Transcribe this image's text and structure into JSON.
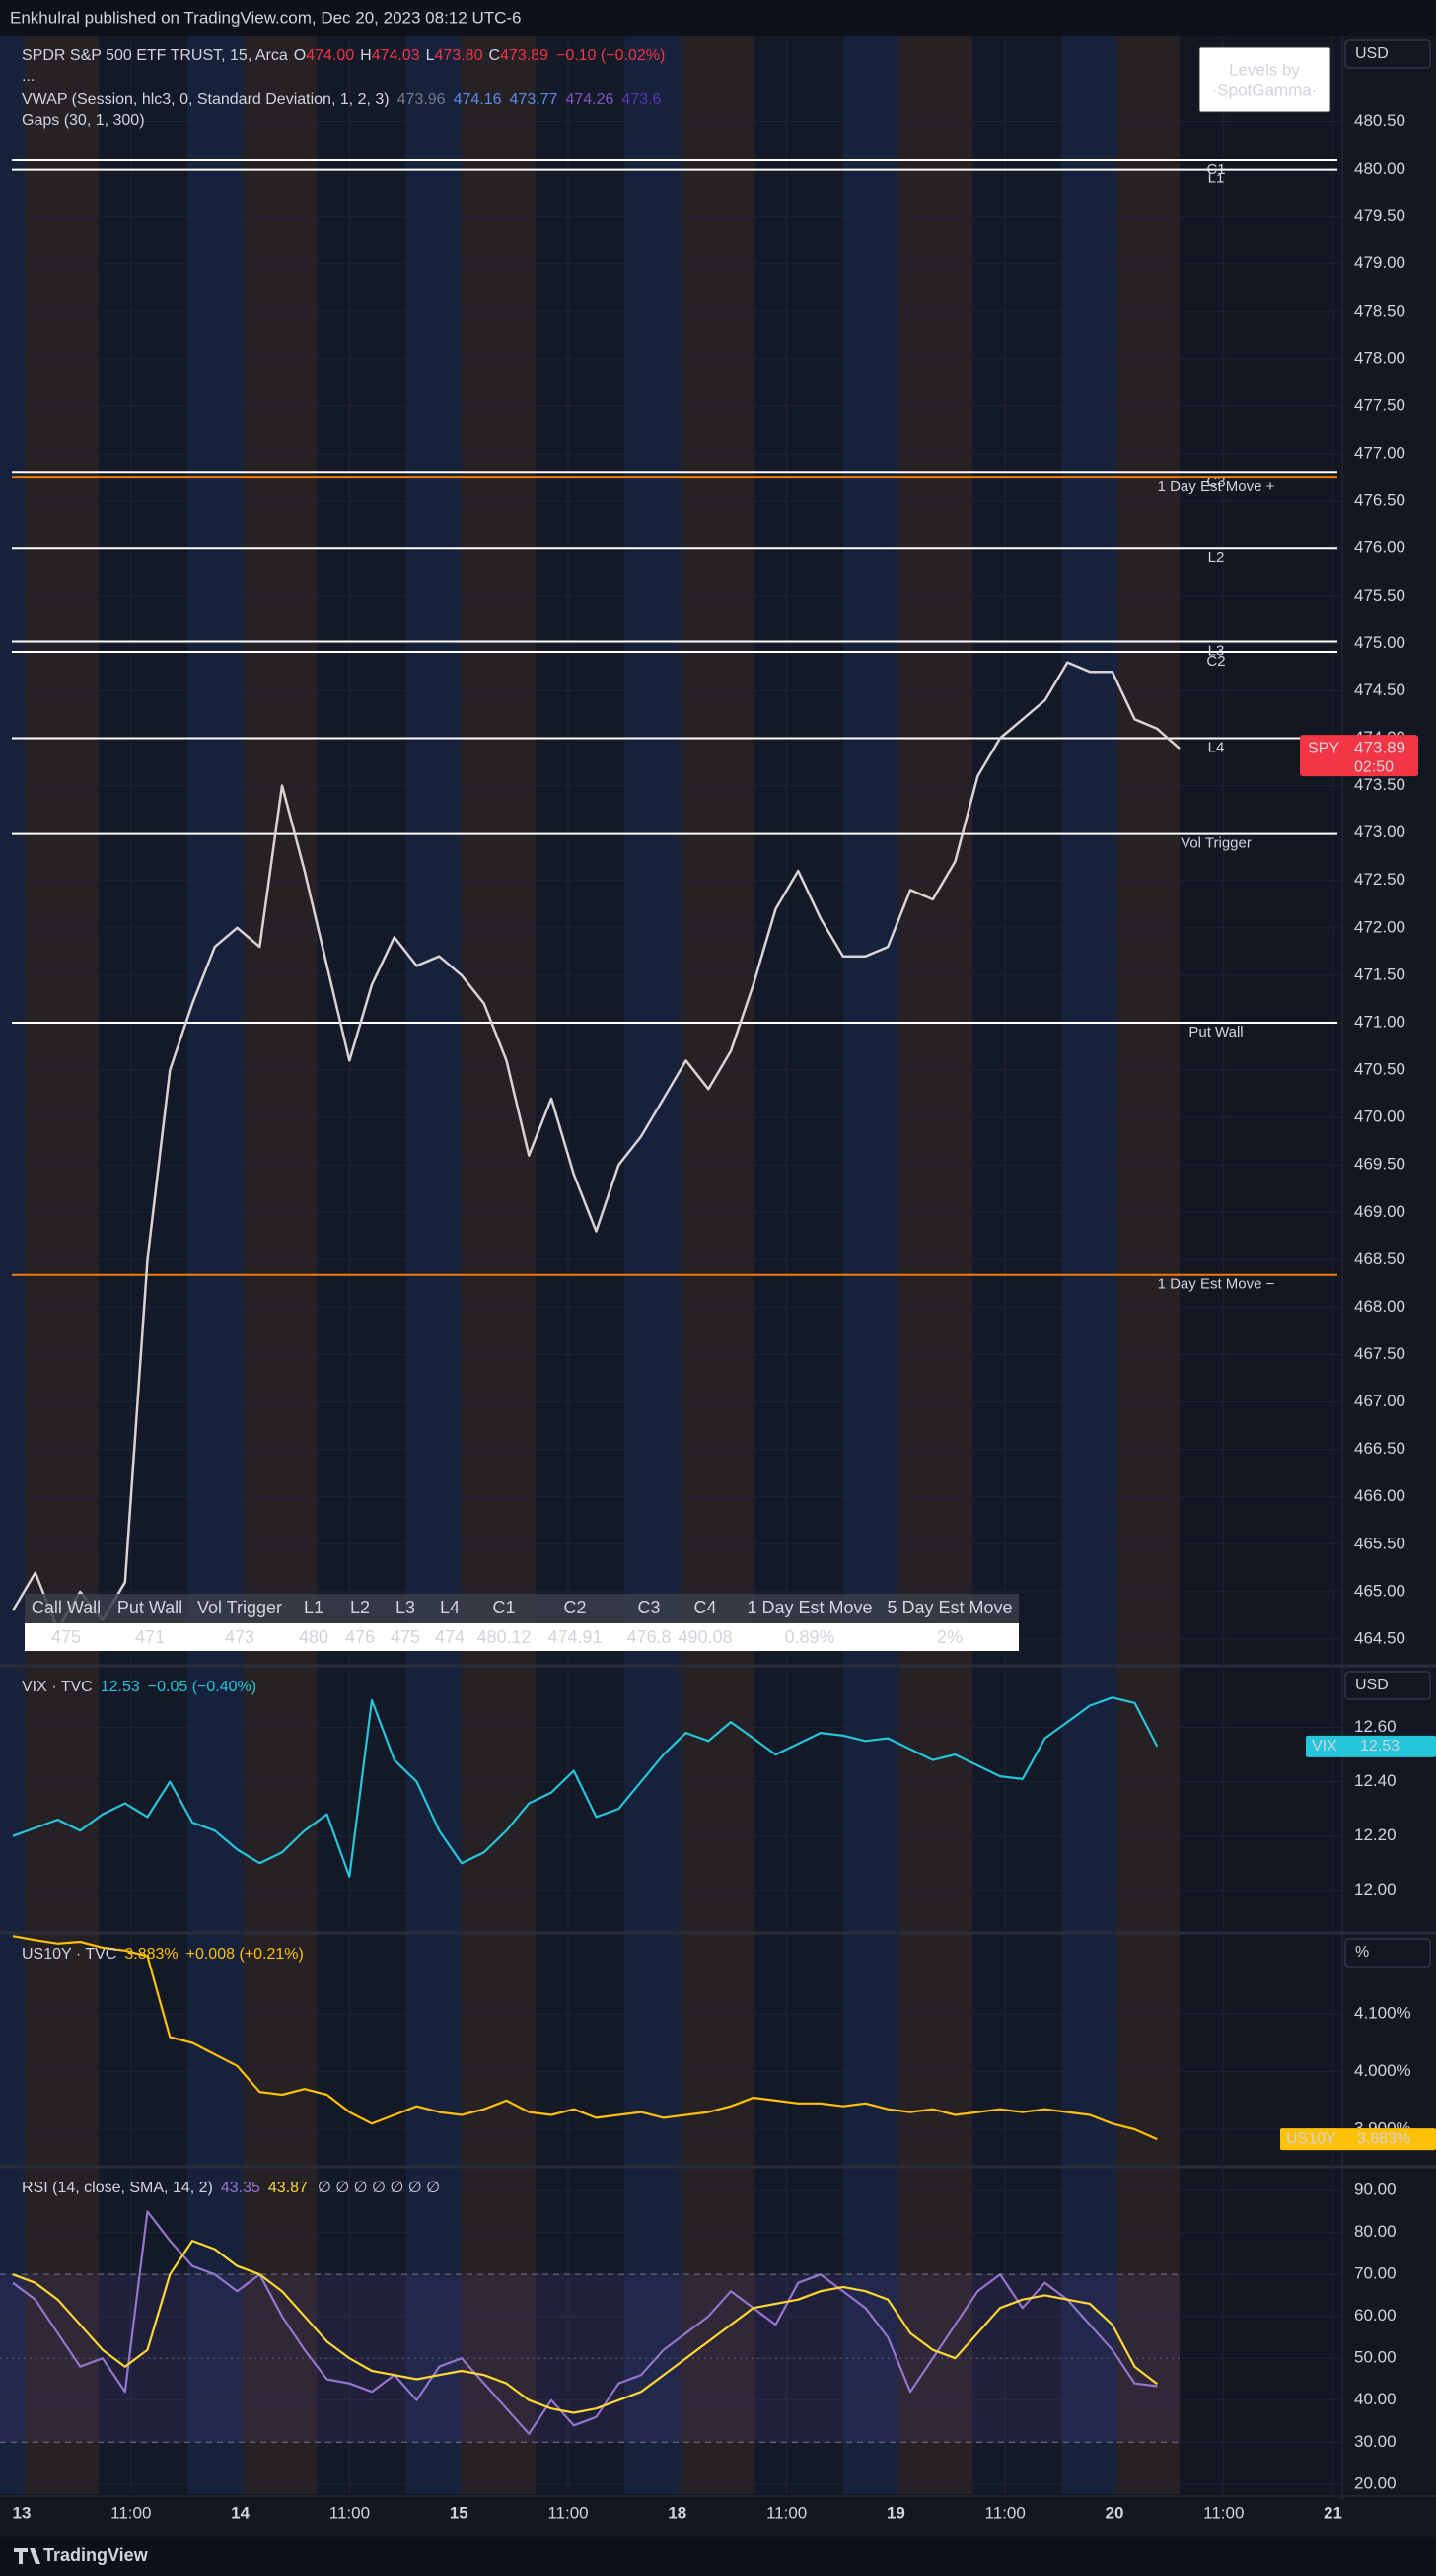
{
  "header": {
    "text": "Enkhulral published on TradingView.com, Dec 20, 2023 08:12 UTC-6"
  },
  "footer": {
    "text": "TradingView"
  },
  "time_axis": {
    "labels": [
      "13",
      "11:00",
      "14",
      "11:00",
      "15",
      "11:00",
      "18",
      "11:00",
      "19",
      "11:00",
      "20",
      "11:00",
      "21"
    ]
  },
  "table": {
    "headers": [
      "Call Wall",
      "Put Wall",
      "Vol Trigger",
      "L1",
      "L2",
      "L3",
      "L4",
      "C1",
      "C2",
      "C3",
      "C4",
      "1 Day Est Move",
      "5 Day Est Move"
    ],
    "values": [
      "475",
      "471",
      "473",
      "480",
      "476",
      "475",
      "474",
      "480.12",
      "474.91",
      "476.8",
      "490.08",
      "0.89%",
      "2%"
    ]
  },
  "chart_data": [
    {
      "type": "line",
      "title": "SPDR S&P 500 ETF TRUST, 15, Arca",
      "ohlc": [
        {
          "key": "O",
          "value": "474.00"
        },
        {
          "key": "H",
          "value": "474.03"
        },
        {
          "key": "L",
          "value": "473.80"
        },
        {
          "key": "C",
          "value": "473.89"
        }
      ],
      "change": "−0.10 (−0.02%)",
      "collapsed": "...",
      "indicators": [
        {
          "name": "VWAP (Session, hlc3, 0, Standard Deviation, 1, 2, 3)",
          "values": [
            {
              "text": "473.96",
              "color": "#787b86"
            },
            {
              "text": "474.16",
              "color": "#5b8def"
            },
            {
              "text": "473.77",
              "color": "#5b8def"
            },
            {
              "text": "474.26",
              "color": "#7e57c2"
            },
            {
              "text": "473.6",
              "color": "#5e35b1"
            }
          ]
        },
        {
          "name": "Gaps (30, 1, 300)",
          "values": []
        }
      ],
      "currency": "USD",
      "badge": [
        "Levels by",
        "·SpotGamma·"
      ],
      "last_price": {
        "symbol": "SPY",
        "value": 473.89,
        "countdown": "02:50",
        "color": "#f23645"
      },
      "series": [
        {
          "name": "SPY",
          "color": "#d9d3d6",
          "values": [
            464.8,
            465.2,
            464.6,
            465.0,
            464.7,
            465.1,
            468.5,
            470.5,
            471.2,
            471.8,
            472.0,
            471.8,
            473.5,
            472.6,
            471.6,
            470.6,
            471.4,
            471.9,
            471.6,
            471.7,
            471.5,
            471.2,
            470.6,
            469.6,
            470.2,
            469.4,
            468.8,
            469.5,
            469.8,
            470.2,
            470.6,
            470.3,
            470.7,
            471.4,
            472.2,
            472.6,
            472.1,
            471.7,
            471.7,
            471.8,
            472.4,
            472.3,
            472.7,
            473.6,
            474.0,
            474.2,
            474.4,
            474.8,
            474.7,
            474.7,
            474.2,
            474.1,
            473.89
          ]
        }
      ],
      "levels": [
        {
          "name": "C1",
          "value": 480.1,
          "color": "#ffffff"
        },
        {
          "name": "L1",
          "value": 480.0,
          "color": "#ffffff"
        },
        {
          "name": "C3",
          "value": 476.8,
          "color": "#ffffff"
        },
        {
          "name": "1 Day Est Move +",
          "value": 476.75,
          "color": "#f57c00"
        },
        {
          "name": "L2",
          "value": 476.0,
          "color": "#ffffff"
        },
        {
          "name": "L3",
          "value": 475.02,
          "color": "#ffffff"
        },
        {
          "name": "C2",
          "value": 474.91,
          "color": "#ffffff"
        },
        {
          "name": "L4",
          "value": 474.0,
          "color": "#ffffff"
        },
        {
          "name": "Vol Trigger",
          "value": 472.99,
          "color": "#ffffff"
        },
        {
          "name": "Put Wall",
          "value": 471.0,
          "color": "#ffffff"
        },
        {
          "name": "1 Day Est Move −",
          "value": 468.34,
          "color": "#f57c00"
        }
      ],
      "ylim": [
        464.25,
        481.4
      ],
      "yticks": [
        {
          "value": 464.5,
          "label": "464.50"
        },
        {
          "value": 465,
          "label": "465.00"
        },
        {
          "value": 465.5,
          "label": "465.50"
        },
        {
          "value": 466,
          "label": "466.00"
        },
        {
          "value": 466.5,
          "label": "466.50"
        },
        {
          "value": 467,
          "label": "467.00"
        },
        {
          "value": 467.5,
          "label": "467.50"
        },
        {
          "value": 468,
          "label": "468.00"
        },
        {
          "value": 468.5,
          "label": "468.50"
        },
        {
          "value": 469,
          "label": "469.00"
        },
        {
          "value": 469.5,
          "label": "469.50"
        },
        {
          "value": 470,
          "label": "470.00"
        },
        {
          "value": 470.5,
          "label": "470.50"
        },
        {
          "value": 471,
          "label": "471.00"
        },
        {
          "value": 471.5,
          "label": "471.50"
        },
        {
          "value": 472,
          "label": "472.00"
        },
        {
          "value": 472.5,
          "label": "472.50"
        },
        {
          "value": 473,
          "label": "473.00"
        },
        {
          "value": 473.5,
          "label": "473.50"
        },
        {
          "value": 474,
          "label": "474.00"
        },
        {
          "value": 474.5,
          "label": "474.50"
        },
        {
          "value": 475,
          "label": "475.00"
        },
        {
          "value": 475.5,
          "label": "475.50"
        },
        {
          "value": 476,
          "label": "476.00"
        },
        {
          "value": 476.5,
          "label": "476.50"
        },
        {
          "value": 477,
          "label": "477.00"
        },
        {
          "value": 477.5,
          "label": "477.50"
        },
        {
          "value": 478,
          "label": "478.00"
        },
        {
          "value": 478.5,
          "label": "478.50"
        },
        {
          "value": 479,
          "label": "479.00"
        },
        {
          "value": 479.5,
          "label": "479.50"
        },
        {
          "value": 480,
          "label": "480.00"
        },
        {
          "value": 480.5,
          "label": "480.50"
        }
      ],
      "grid": true
    },
    {
      "type": "line",
      "title": "VIX · TVC",
      "last": "12.53",
      "change": "−0.05 (−0.40%)",
      "currency": "USD",
      "tag": "VIX",
      "series": [
        {
          "name": "VIX",
          "color": "#26c6da",
          "values": [
            12.2,
            12.23,
            12.26,
            12.22,
            12.28,
            12.32,
            12.27,
            12.4,
            12.25,
            12.22,
            12.15,
            12.1,
            12.14,
            12.22,
            12.28,
            12.05,
            12.7,
            12.48,
            12.4,
            12.22,
            12.1,
            12.14,
            12.22,
            12.32,
            12.36,
            12.44,
            12.27,
            12.3,
            12.4,
            12.5,
            12.58,
            12.55,
            12.62,
            12.56,
            12.5,
            12.54,
            12.58,
            12.57,
            12.55,
            12.56,
            12.52,
            12.48,
            12.5,
            12.46,
            12.42,
            12.41,
            12.56,
            12.62,
            12.68,
            12.71,
            12.69,
            12.53
          ]
        }
      ],
      "ylim": [
        11.85,
        12.82
      ],
      "yticks": [
        {
          "value": 12,
          "label": "12.00"
        },
        {
          "value": 12.2,
          "label": "12.20"
        },
        {
          "value": 12.4,
          "label": "12.40"
        },
        {
          "value": 12.6,
          "label": "12.60"
        }
      ],
      "grid": true
    },
    {
      "type": "line",
      "title": "US10Y · TVC",
      "last": "3.883%",
      "change": "+0.008 (+0.21%)",
      "currency": "%",
      "tag": "US10Y",
      "series": [
        {
          "name": "US10Y",
          "color": "#ffc107",
          "values": [
            4.235,
            4.228,
            4.222,
            4.225,
            4.215,
            4.21,
            4.2,
            4.06,
            4.05,
            4.03,
            4.01,
            3.965,
            3.96,
            3.97,
            3.96,
            3.93,
            3.91,
            3.925,
            3.94,
            3.93,
            3.925,
            3.935,
            3.95,
            3.93,
            3.925,
            3.935,
            3.92,
            3.925,
            3.93,
            3.92,
            3.925,
            3.93,
            3.94,
            3.955,
            3.95,
            3.945,
            3.945,
            3.94,
            3.945,
            3.935,
            3.93,
            3.935,
            3.925,
            3.93,
            3.935,
            3.93,
            3.935,
            3.93,
            3.925,
            3.91,
            3.9,
            3.883
          ]
        }
      ],
      "ylim": [
        3.837,
        4.237
      ],
      "yticks": [
        {
          "value": 3.9,
          "label": "3.900%"
        },
        {
          "value": 4,
          "label": "4.000%"
        },
        {
          "value": 4.1,
          "label": "4.100%"
        }
      ],
      "grid": true
    },
    {
      "type": "line",
      "title": "RSI (14, close, SMA, 14, 2)",
      "legend_values": [
        {
          "text": "43.35",
          "color": "#9575cd"
        },
        {
          "text": "43.87",
          "color": "#fdd835"
        }
      ],
      "extras": "∅ ∅ ∅ ∅ ∅ ∅ ∅",
      "series": [
        {
          "name": "RSI",
          "color": "#9575cd",
          "values": [
            68,
            64,
            56,
            48,
            50,
            42,
            85,
            78,
            72,
            70,
            66,
            70,
            60,
            52,
            45,
            44,
            42,
            46,
            40,
            48,
            50,
            44,
            38,
            32,
            40,
            34,
            36,
            44,
            46,
            52,
            56,
            60,
            66,
            62,
            58,
            68,
            70,
            66,
            62,
            55,
            42,
            50,
            58,
            66,
            70,
            62,
            68,
            64,
            58,
            52,
            44,
            43.35
          ]
        },
        {
          "name": "SMA",
          "color": "#fdd835",
          "values": [
            70,
            68,
            64,
            58,
            52,
            48,
            52,
            70,
            78,
            76,
            72,
            70,
            66,
            60,
            54,
            50,
            47,
            46,
            45,
            46,
            47,
            46,
            44,
            40,
            38,
            37,
            38,
            40,
            42,
            46,
            50,
            54,
            58,
            62,
            63,
            64,
            66,
            67,
            66,
            64,
            56,
            52,
            50,
            56,
            62,
            64,
            65,
            64,
            63,
            58,
            48,
            43.87
          ]
        }
      ],
      "bands": [
        30,
        70
      ],
      "midline": 50,
      "ylim": [
        17.6,
        95.2
      ],
      "yticks": [
        {
          "value": 20,
          "label": "20.00"
        },
        {
          "value": 30,
          "label": "30.00"
        },
        {
          "value": 40,
          "label": "40.00"
        },
        {
          "value": 50,
          "label": "50.00"
        },
        {
          "value": 60,
          "label": "60.00"
        },
        {
          "value": 70,
          "label": "70.00"
        },
        {
          "value": 80,
          "label": "80.00"
        },
        {
          "value": 90,
          "label": "90.00"
        }
      ],
      "grid": true
    }
  ]
}
